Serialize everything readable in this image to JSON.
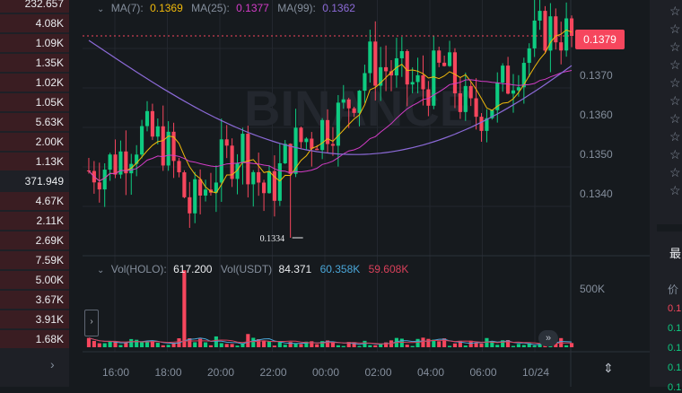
{
  "orderbook": {
    "rows": [
      "232.657",
      "4.08K",
      "1.09K",
      "1.35K",
      "1.02K",
      "1.05K",
      "5.63K",
      "2.00K",
      "1.13K",
      "371.949",
      "4.67K",
      "2.11K",
      "2.69K",
      "7.59K",
      "5.00K",
      "3.67K",
      "3.91K",
      "1.68K"
    ],
    "mid_index": 9
  },
  "chart": {
    "legend": {
      "ma7_label": "MA(7):",
      "ma7_value": "0.1369",
      "ma25_label": "MA(25):",
      "ma25_value": "0.1377",
      "ma99_label": "MA(99):",
      "ma99_value": "0.1362"
    },
    "price_axis": [
      "0.1370",
      "0.1360",
      "0.1350",
      "0.1340"
    ],
    "current_price": "0.1379",
    "low_label": "0.1334",
    "watermark": "BINANCE",
    "volume_legend": {
      "vol_holo_label": "Vol(HOLO):",
      "vol_holo_value": "617.200",
      "vol_usdt_label": "Vol(USDT)",
      "vol_usdt_value": "84.371",
      "ma5_value": "60.358K",
      "ma10_value": "59.608K"
    },
    "volume_axis": "500K",
    "time_axis": [
      "16:00",
      "18:00",
      "20:00",
      "22:00",
      "00:00",
      "02:00",
      "04:00",
      "06:00",
      "10/24"
    ],
    "colors": {
      "up": "#0ecb81",
      "down": "#f6465d",
      "ma7": "#f0b90b",
      "ma25": "#d33cc7",
      "ma99": "#8c6ad8"
    },
    "chart_data": {
      "type": "candlestick",
      "x": [
        "16:00",
        "18:00",
        "20:00",
        "22:00",
        "00:00",
        "02:00",
        "04:00",
        "06:00",
        "10/24"
      ],
      "close_points": [
        0.1349,
        0.1351,
        0.1357,
        0.1355,
        0.134,
        0.1349,
        0.1355,
        0.1343,
        0.1354,
        0.1358,
        0.1362,
        0.1373,
        0.1371,
        0.1367,
        0.1372,
        0.1361,
        0.1365,
        0.1374,
        0.1381,
        0.1379
      ],
      "low": 0.1334,
      "last": 0.1379,
      "y_range": [
        0.1335,
        0.1385
      ]
    }
  },
  "right_panel": {
    "heading": "最",
    "subheading": "价",
    "trades": [
      {
        "text": "0.1",
        "color": "#f6465d"
      },
      {
        "text": "0.1",
        "color": "#0ecb81"
      },
      {
        "text": "0.1",
        "color": "#0ecb81"
      },
      {
        "text": "0.1",
        "color": "#0ecb81"
      },
      {
        "text": "0.1",
        "color": "#0ecb81"
      }
    ]
  }
}
